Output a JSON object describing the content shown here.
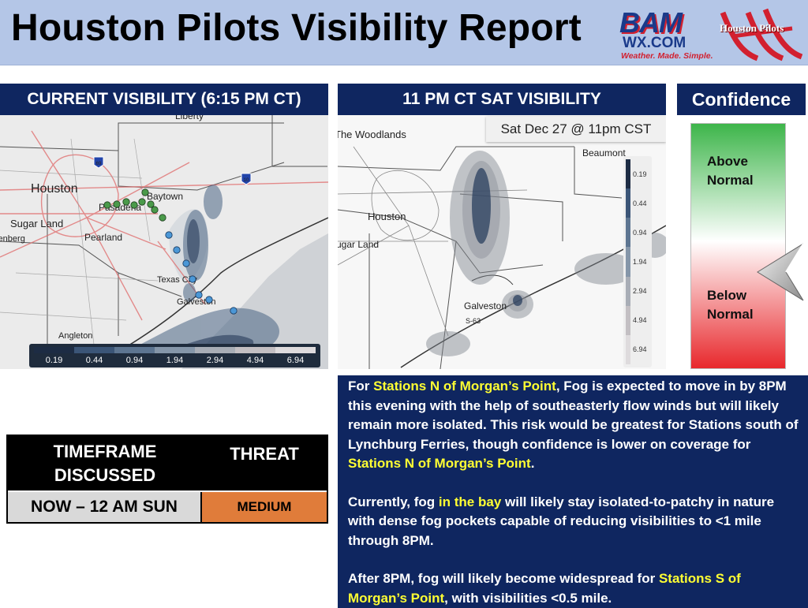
{
  "title": "Houston Pilots Visibility Report",
  "logos": {
    "bam_top": "BAM",
    "bam_domain": "WX.COM",
    "bam_tagline": "Weather. Made. Simple.",
    "pilots_name": "Houston Pilots"
  },
  "current_panel": {
    "header": "CURRENT VISIBILITY (6:15 PM CT)",
    "places": [
      "Liberty",
      "Houston",
      "Baytown",
      "Pasadena",
      "Sugar Land",
      "Pearland",
      "Texas City",
      "Galveston",
      "Angleton",
      "Rosenberg"
    ],
    "legend": [
      "0.19",
      "0.44",
      "0.94",
      "1.94",
      "2.94",
      "4.94",
      "6.94"
    ],
    "highway_shields": [
      "10",
      "69"
    ]
  },
  "forecast_panel": {
    "header": "11 PM CT SAT VISIBILITY",
    "timestamp": "Sat Dec 27 @ 11pm CST",
    "places": [
      "The Woodlands",
      "Houston",
      "Sugar Land",
      "Beaumont",
      "Galveston"
    ],
    "legend": [
      "0.19",
      "0.44",
      "0.94",
      "1.94",
      "2.94",
      "4.94",
      "6.94"
    ],
    "road_label": "S-63"
  },
  "confidence": {
    "header": "Confidence",
    "above": "Above Normal",
    "below": "Below Normal",
    "level": "Below Normal",
    "colors": {
      "top": "#3db54a",
      "middle": "#ffffff",
      "bottom": "#e8282c"
    }
  },
  "table": {
    "col1_header": "TIMEFRAME DISCUSSED",
    "col2_header": "THREAT",
    "timeframe": "NOW – 12 AM SUN",
    "threat": "MEDIUM",
    "threat_color": "#e07c3a"
  },
  "discussion": {
    "p1": [
      {
        "t": "For "
      },
      {
        "t": "Stations N of Morgan’s Point",
        "hl": true
      },
      {
        "t": ", Fog is expected to move in by 8PM this evening with the help of southeasterly flow winds but will likely remain more isolated. This risk would be greatest for Stations south of Lynchburg Ferries, though confidence is lower on coverage for "
      },
      {
        "t": "Stations N of Morgan’s Point",
        "hl": true
      },
      {
        "t": "."
      }
    ],
    "p2": [
      {
        "t": "Currently, fog "
      },
      {
        "t": "in the bay",
        "hl": true
      },
      {
        "t": " will likely stay isolated-to-patchy in nature with dense fog pockets capable of reducing visibilities to <1 mile through 8PM."
      }
    ],
    "p3": [
      {
        "t": "After 8PM, fog will likely become widespread for "
      },
      {
        "t": "Stations S of Morgan’s Point",
        "hl": true
      },
      {
        "t": ", with visibilities <0.5 mile."
      }
    ]
  }
}
